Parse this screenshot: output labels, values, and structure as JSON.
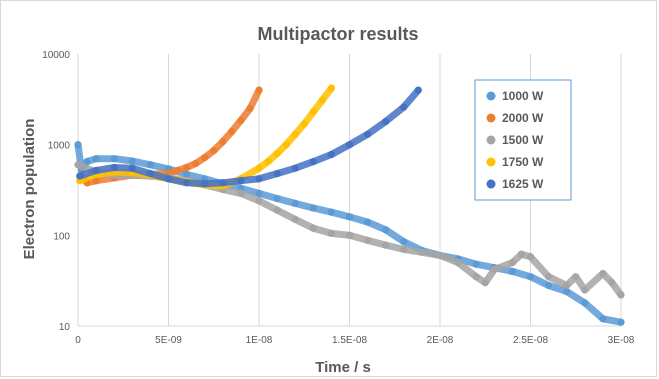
{
  "chart_data": {
    "type": "scatter",
    "title": "Multipactor results",
    "xlabel": "Time / s",
    "ylabel": "Electron population",
    "xlim": [
      0,
      3e-08
    ],
    "ylim": [
      10,
      10000
    ],
    "yscale": "log",
    "x_ticks": [
      0,
      5e-09,
      1e-08,
      1.5e-08,
      2e-08,
      2.5e-08,
      3e-08
    ],
    "x_tick_labels": [
      "0",
      "5E-09",
      "1E-08",
      "1.5E-08",
      "2E-08",
      "2.5E-08",
      "3E-08"
    ],
    "y_ticks": [
      10,
      100,
      1000,
      10000
    ],
    "y_tick_labels": [
      "10",
      "100",
      "1000",
      "10000"
    ],
    "grid": "vertical",
    "legend_position": "right",
    "series": [
      {
        "name": "1000 W",
        "color": "#5b9bd5",
        "points": [
          [
            0,
            1000
          ],
          [
            2e-10,
            520
          ],
          [
            5e-10,
            650
          ],
          [
            1e-09,
            700
          ],
          [
            2e-09,
            700
          ],
          [
            3e-09,
            660
          ],
          [
            4e-09,
            600
          ],
          [
            5e-09,
            540
          ],
          [
            6e-09,
            470
          ],
          [
            7e-09,
            420
          ],
          [
            8e-09,
            370
          ],
          [
            9e-09,
            330
          ],
          [
            1e-08,
            290
          ],
          [
            1.1e-08,
            255
          ],
          [
            1.2e-08,
            225
          ],
          [
            1.3e-08,
            200
          ],
          [
            1.4e-08,
            180
          ],
          [
            1.5e-08,
            160
          ],
          [
            1.6e-08,
            140
          ],
          [
            1.7e-08,
            115
          ],
          [
            1.8e-08,
            85
          ],
          [
            1.9e-08,
            68
          ],
          [
            2e-08,
            60
          ],
          [
            2.1e-08,
            55
          ],
          [
            2.2e-08,
            48
          ],
          [
            2.3e-08,
            44
          ],
          [
            2.4e-08,
            40
          ],
          [
            2.5e-08,
            35
          ],
          [
            2.6e-08,
            28
          ],
          [
            2.7e-08,
            24
          ],
          [
            2.8e-08,
            18
          ],
          [
            2.9e-08,
            12
          ],
          [
            3e-08,
            11
          ]
        ]
      },
      {
        "name": "2000 W",
        "color": "#ed7d31",
        "points": [
          [
            2e-10,
            450
          ],
          [
            5e-10,
            380
          ],
          [
            1e-09,
            400
          ],
          [
            2e-09,
            430
          ],
          [
            3e-09,
            460
          ],
          [
            4e-09,
            470
          ],
          [
            5e-09,
            480
          ],
          [
            5.5e-09,
            520
          ],
          [
            6e-09,
            560
          ],
          [
            6.5e-09,
            620
          ],
          [
            7e-09,
            720
          ],
          [
            7.5e-09,
            860
          ],
          [
            8e-09,
            1080
          ],
          [
            8.5e-09,
            1400
          ],
          [
            9e-09,
            1850
          ],
          [
            9.5e-09,
            2500
          ],
          [
            1e-08,
            4000
          ]
        ]
      },
      {
        "name": "1500 W",
        "color": "#a5a5a5",
        "points": [
          [
            0,
            600
          ],
          [
            1e-09,
            500
          ],
          [
            2e-09,
            460
          ],
          [
            3e-09,
            460
          ],
          [
            4e-09,
            450
          ],
          [
            5e-09,
            430
          ],
          [
            6e-09,
            400
          ],
          [
            7e-09,
            360
          ],
          [
            8e-09,
            320
          ],
          [
            9e-09,
            290
          ],
          [
            1e-08,
            240
          ],
          [
            1.1e-08,
            190
          ],
          [
            1.2e-08,
            150
          ],
          [
            1.3e-08,
            120
          ],
          [
            1.4e-08,
            105
          ],
          [
            1.5e-08,
            100
          ],
          [
            1.6e-08,
            88
          ],
          [
            1.7e-08,
            78
          ],
          [
            1.8e-08,
            70
          ],
          [
            1.9e-08,
            65
          ],
          [
            2e-08,
            60
          ],
          [
            2.1e-08,
            50
          ],
          [
            2.2e-08,
            35
          ],
          [
            2.25e-08,
            30
          ],
          [
            2.3e-08,
            42
          ],
          [
            2.4e-08,
            50
          ],
          [
            2.45e-08,
            62
          ],
          [
            2.5e-08,
            58
          ],
          [
            2.6e-08,
            35
          ],
          [
            2.7e-08,
            28
          ],
          [
            2.75e-08,
            35
          ],
          [
            2.8e-08,
            25
          ],
          [
            2.9e-08,
            38
          ],
          [
            2.95e-08,
            30
          ],
          [
            3e-08,
            22
          ]
        ]
      },
      {
        "name": "1750 W",
        "color": "#ffc000",
        "points": [
          [
            1e-10,
            400
          ],
          [
            1e-09,
            470
          ],
          [
            2e-09,
            500
          ],
          [
            3e-09,
            490
          ],
          [
            4e-09,
            460
          ],
          [
            5e-09,
            420
          ],
          [
            6e-09,
            390
          ],
          [
            7e-09,
            360
          ],
          [
            8e-09,
            350
          ],
          [
            9e-09,
            420
          ],
          [
            1e-08,
            550
          ],
          [
            1.05e-08,
            650
          ],
          [
            1.1e-08,
            800
          ],
          [
            1.15e-08,
            1000
          ],
          [
            1.2e-08,
            1300
          ],
          [
            1.25e-08,
            1700
          ],
          [
            1.3e-08,
            2300
          ],
          [
            1.35e-08,
            3100
          ],
          [
            1.4e-08,
            4200
          ]
        ]
      },
      {
        "name": "1625 W",
        "color": "#4472c4",
        "points": [
          [
            1e-10,
            450
          ],
          [
            1e-09,
            520
          ],
          [
            2e-09,
            560
          ],
          [
            3e-09,
            550
          ],
          [
            4e-09,
            480
          ],
          [
            5e-09,
            420
          ],
          [
            6e-09,
            380
          ],
          [
            7e-09,
            370
          ],
          [
            8e-09,
            380
          ],
          [
            9e-09,
            400
          ],
          [
            1e-08,
            420
          ],
          [
            1.1e-08,
            480
          ],
          [
            1.2e-08,
            550
          ],
          [
            1.3e-08,
            650
          ],
          [
            1.4e-08,
            780
          ],
          [
            1.5e-08,
            1000
          ],
          [
            1.6e-08,
            1300
          ],
          [
            1.7e-08,
            1800
          ],
          [
            1.8e-08,
            2600
          ],
          [
            1.88e-08,
            4000
          ]
        ]
      }
    ]
  }
}
